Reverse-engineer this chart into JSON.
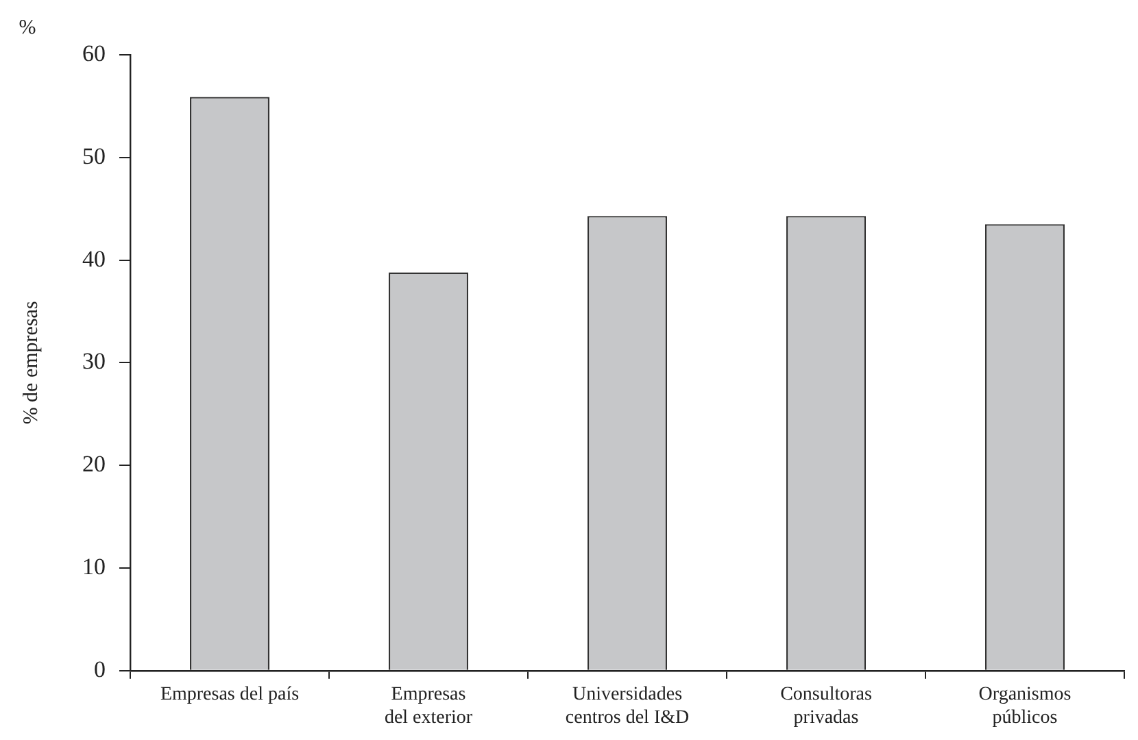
{
  "chart_data": {
    "type": "bar",
    "ylabel": "% de empresas",
    "annotations": [
      "%"
    ],
    "categories": [
      "Empresas del país",
      "Empresas\ndel exterior",
      "Universidades\ncentros del I&D",
      "Consultoras\nprivadas",
      "Organismos\npúblicos"
    ],
    "values": [
      55.9,
      38.8,
      44.3,
      44.3,
      43.5
    ],
    "color": "#c6c7c9",
    "ylim": [
      0,
      60
    ],
    "yticks": [
      0,
      10,
      20,
      30,
      40,
      50,
      60
    ],
    "grid": false,
    "legend": false
  }
}
